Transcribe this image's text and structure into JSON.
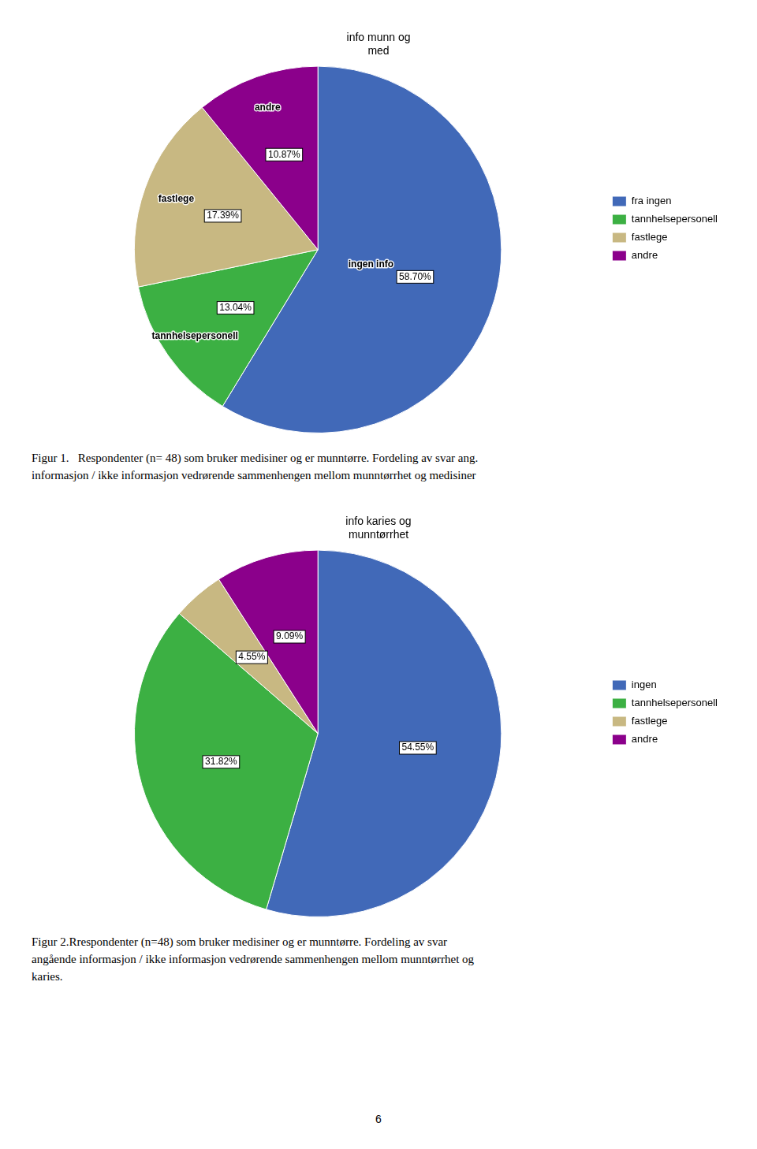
{
  "chart_data": [
    {
      "type": "pie",
      "title": "info munn og\nmed",
      "categories": [
        "fra ingen",
        "tannhelsepersonell",
        "fastlege",
        "andre"
      ],
      "values": [
        58.7,
        13.04,
        17.39,
        10.87
      ],
      "value_labels": [
        "58.70%",
        "13.04%",
        "17.39%",
        "10.87%"
      ],
      "colors": [
        "#4169B8",
        "#3CB043",
        "#C8B882",
        "#8B008B"
      ],
      "data_labels": true,
      "legend": "right",
      "annotations": [
        {
          "text": "ingen info",
          "category": "fra ingen"
        },
        {
          "text": "tannhelsepersonell",
          "category": "tannhelsepersonell"
        },
        {
          "text": "fastlege",
          "category": "fastlege"
        },
        {
          "text": "andre",
          "category": "andre"
        }
      ],
      "caption": [
        "Figur 1.   Respondenter (n= 48) som bruker medisiner og er munntørre. Fordeling av svar ang.",
        "informasjon / ikke informasjon vedrørende sammenhengen mellom munntørrhet og medisiner"
      ]
    },
    {
      "type": "pie",
      "title": "info karies og\nmunntørrhet",
      "categories": [
        "ingen",
        "tannhelsepersonell",
        "fastlege",
        "andre"
      ],
      "values": [
        54.55,
        31.82,
        4.55,
        9.09
      ],
      "value_labels": [
        "54.55%",
        "31.82%",
        "4.55%",
        "9.09%"
      ],
      "colors": [
        "#4169B8",
        "#3CB043",
        "#C8B882",
        "#8B008B"
      ],
      "data_labels": true,
      "legend": "right",
      "caption": [
        "Figur 2.Rrespondenter (n=48) som bruker medisiner og er munntørre. Fordeling av svar",
        "angående informasjon / ikke informasjon vedrørende sammenhengen mellom munntørrhet og",
        "karies."
      ]
    }
  ],
  "page_number": "6"
}
